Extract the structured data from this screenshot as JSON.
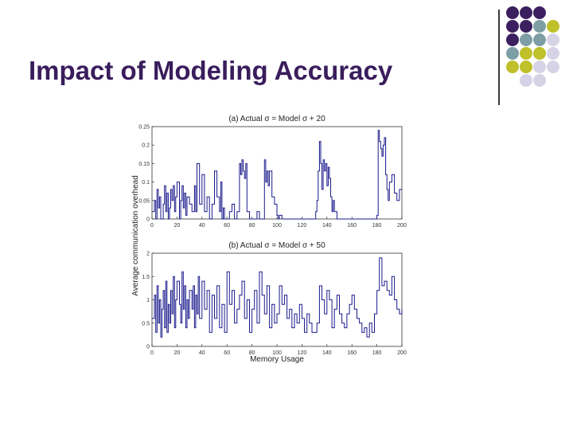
{
  "slide": {
    "title": "Impact of Modeling Accuracy"
  },
  "decoration": {
    "dot_rows": [
      [
        "purple",
        "purple",
        "purple",
        "none"
      ],
      [
        "purple",
        "purple",
        "teal",
        "olive"
      ],
      [
        "purple",
        "teal",
        "teal",
        "lavender"
      ],
      [
        "teal",
        "olive",
        "olive",
        "lavender"
      ],
      [
        "olive",
        "olive",
        "lavender",
        "lavender"
      ],
      [
        "none",
        "lavender",
        "lavender",
        "none"
      ]
    ],
    "colors": {
      "purple": "#3b1f5e",
      "teal": "#7d9ea4",
      "olive": "#bfc02a",
      "lavender": "#d7d3e6",
      "line": "#3a3a3a"
    }
  },
  "figure": {
    "shared_ylabel": "Average communication overhead",
    "line_color": "#1a1a8c"
  },
  "chart_data": [
    {
      "type": "line",
      "title": "(a) Actual σ = Model σ + 20",
      "xlabel": "",
      "xlim": [
        0,
        200
      ],
      "ylim": [
        0,
        0.25
      ],
      "xticks": [
        "0",
        "20",
        "40",
        "60",
        "80",
        "100",
        "120",
        "140",
        "160",
        "180",
        "200"
      ],
      "yticks": [
        "0",
        "0.05",
        "0.1",
        "0.15",
        "0.2",
        "0.25"
      ],
      "series": [
        {
          "x": [
            0,
            2,
            3,
            4,
            5,
            6,
            7,
            9,
            10,
            11,
            12,
            13,
            14,
            15,
            16,
            17,
            18,
            19,
            20,
            22,
            23,
            24,
            25,
            26,
            27,
            28,
            30,
            32,
            34,
            35,
            36,
            38,
            40,
            42,
            44,
            46,
            48,
            50,
            52,
            54,
            55,
            56,
            57,
            58,
            60,
            62,
            64,
            66,
            68,
            70,
            71,
            72,
            73,
            74,
            75,
            76,
            78,
            80,
            82,
            84,
            86,
            88,
            90,
            91,
            92,
            93,
            94,
            96,
            98,
            100,
            101,
            102,
            104,
            110,
            120,
            130,
            131,
            132,
            133,
            134,
            135,
            136,
            137,
            138,
            139,
            140,
            141,
            142,
            143,
            144,
            145,
            146,
            148,
            150,
            160,
            170,
            180,
            181,
            182,
            183,
            184,
            185,
            186,
            187,
            188,
            189,
            190,
            192,
            194,
            196,
            198,
            200
          ],
          "y": [
            0.02,
            0.05,
            0.0,
            0.08,
            0.03,
            0.06,
            0.0,
            0.04,
            0.09,
            0.02,
            0.07,
            0.0,
            0.03,
            0.08,
            0.05,
            0.09,
            0.02,
            0.06,
            0.1,
            0.0,
            0.05,
            0.09,
            0.03,
            0.07,
            0.01,
            0.06,
            0.04,
            0.02,
            0.09,
            0.02,
            0.15,
            0.04,
            0.12,
            0.02,
            0.06,
            0.0,
            0.04,
            0.13,
            0.06,
            0.02,
            0.1,
            0.0,
            0.03,
            0.0,
            0.0,
            0.02,
            0.04,
            0.0,
            0.02,
            0.15,
            0.12,
            0.16,
            0.13,
            0.11,
            0.15,
            0.02,
            0.0,
            0.0,
            0.0,
            0.02,
            0.0,
            0.0,
            0.16,
            0.1,
            0.13,
            0.09,
            0.13,
            0.06,
            0.04,
            0.01,
            0.0,
            0.01,
            0.0,
            0.0,
            0.0,
            0.0,
            0.02,
            0.05,
            0.13,
            0.21,
            0.15,
            0.08,
            0.16,
            0.13,
            0.15,
            0.09,
            0.14,
            0.11,
            0.06,
            0.02,
            0.05,
            0.02,
            0.0,
            0.0,
            0.0,
            0.0,
            0.01,
            0.24,
            0.21,
            0.19,
            0.17,
            0.2,
            0.22,
            0.12,
            0.08,
            0.05,
            0.1,
            0.12,
            0.07,
            0.05,
            0.08,
            0.08
          ]
        }
      ]
    },
    {
      "type": "line",
      "title": "(b) Actual σ = Model σ + 50",
      "xlabel": "Memory Usage",
      "xlim": [
        0,
        200
      ],
      "ylim": [
        0,
        2
      ],
      "xticks": [
        "0",
        "20",
        "40",
        "60",
        "80",
        "100",
        "120",
        "140",
        "160",
        "180",
        "200"
      ],
      "yticks": [
        "0",
        "0.5",
        "1",
        "1.5",
        "2"
      ],
      "series": [
        {
          "x": [
            0,
            2,
            3,
            4,
            5,
            6,
            7,
            8,
            9,
            10,
            11,
            12,
            13,
            14,
            15,
            16,
            17,
            18,
            19,
            20,
            22,
            23,
            24,
            25,
            26,
            27,
            28,
            29,
            30,
            32,
            33,
            34,
            35,
            36,
            37,
            38,
            40,
            42,
            44,
            46,
            48,
            50,
            52,
            54,
            56,
            58,
            60,
            62,
            64,
            66,
            68,
            70,
            72,
            74,
            76,
            78,
            80,
            82,
            84,
            86,
            88,
            90,
            92,
            94,
            96,
            98,
            100,
            102,
            104,
            106,
            108,
            110,
            112,
            114,
            116,
            118,
            120,
            122,
            124,
            126,
            128,
            130,
            132,
            134,
            136,
            138,
            140,
            142,
            144,
            146,
            148,
            150,
            152,
            154,
            156,
            158,
            160,
            162,
            164,
            166,
            168,
            170,
            172,
            174,
            176,
            178,
            180,
            182,
            184,
            186,
            188,
            190,
            192,
            194,
            196,
            198,
            200
          ],
          "y": [
            0.6,
            1.1,
            0.3,
            1.3,
            0.5,
            1.0,
            0.2,
            0.8,
            1.2,
            0.4,
            1.4,
            0.3,
            0.9,
            0.5,
            1.2,
            0.7,
            1.5,
            0.4,
            1.0,
            1.4,
            0.9,
            0.5,
            1.6,
            0.8,
            1.3,
            0.4,
            1.0,
            0.6,
            1.2,
            0.8,
            1.3,
            0.4,
            1.1,
            0.7,
            1.5,
            0.6,
            1.4,
            0.8,
            1.2,
            0.3,
            1.1,
            0.6,
            1.3,
            0.4,
            0.9,
            0.3,
            1.6,
            0.9,
            1.2,
            0.5,
            0.8,
            1.1,
            1.4,
            0.6,
            1.0,
            0.3,
            0.8,
            1.2,
            0.5,
            1.6,
            1.1,
            0.7,
            1.3,
            0.4,
            0.9,
            0.5,
            0.7,
            1.3,
            0.9,
            1.1,
            0.6,
            0.8,
            0.4,
            0.7,
            0.5,
            0.9,
            0.6,
            0.3,
            0.7,
            0.5,
            0.3,
            0.3,
            0.5,
            1.3,
            1.0,
            0.7,
            1.2,
            1.0,
            0.4,
            0.8,
            1.1,
            0.7,
            0.5,
            0.4,
            0.7,
            0.9,
            1.1,
            0.8,
            0.6,
            0.5,
            0.3,
            0.4,
            0.2,
            0.5,
            0.3,
            0.7,
            1.2,
            1.9,
            1.3,
            1.4,
            1.2,
            1.1,
            1.5,
            1.0,
            0.8,
            0.7,
            0.8
          ]
        }
      ]
    }
  ]
}
